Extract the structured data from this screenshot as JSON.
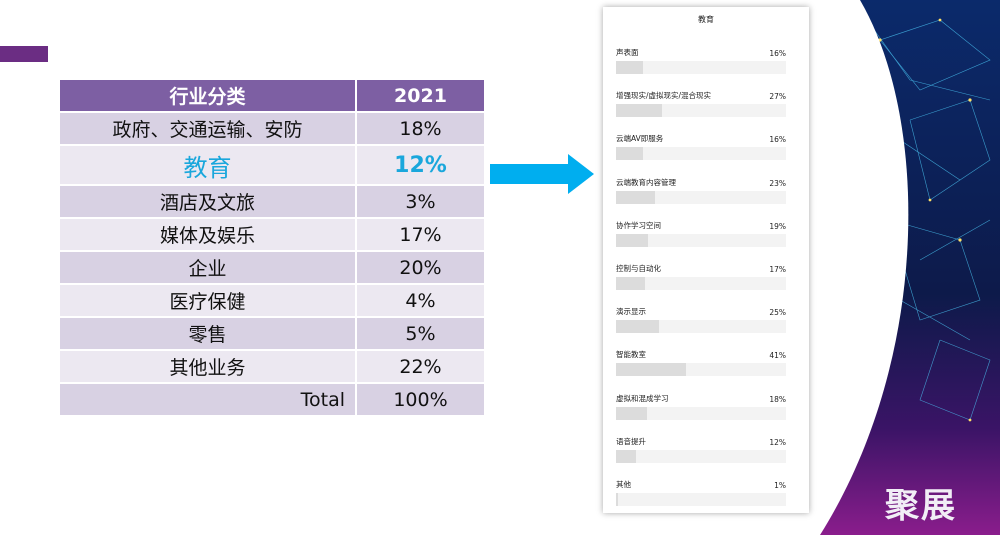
{
  "table": {
    "header": {
      "category": "行业分类",
      "year": "2021"
    },
    "rows": [
      {
        "category": "政府、交通运输、安防",
        "value": "18%"
      },
      {
        "category": "教育",
        "value": "12%"
      },
      {
        "category": "酒店及文旅",
        "value": "3%"
      },
      {
        "category": "媒体及娱乐",
        "value": "17%"
      },
      {
        "category": "企业",
        "value": "20%"
      },
      {
        "category": "医疗保健",
        "value": "4%"
      },
      {
        "category": "零售",
        "value": "5%"
      },
      {
        "category": "其他业务",
        "value": "22%"
      },
      {
        "category": "Total",
        "value": "100%"
      }
    ],
    "highlight_color": "#1aa7dc",
    "header_color": "#7d5fa3"
  },
  "panel": {
    "title": "教育",
    "items": [
      {
        "label": "声表面",
        "pct": "16%",
        "value": 16
      },
      {
        "label": "增强现实/虚拟现实/混合现实",
        "pct": "27%",
        "value": 27
      },
      {
        "label": "云端AV即服务",
        "pct": "16%",
        "value": 16
      },
      {
        "label": "云端教育内容管理",
        "pct": "23%",
        "value": 23
      },
      {
        "label": "协作学习空间",
        "pct": "19%",
        "value": 19
      },
      {
        "label": "控制与自动化",
        "pct": "17%",
        "value": 17
      },
      {
        "label": "演示显示",
        "pct": "25%",
        "value": 25
      },
      {
        "label": "智能教室",
        "pct": "41%",
        "value": 41
      },
      {
        "label": "虚拟和混成学习",
        "pct": "18%",
        "value": 18
      },
      {
        "label": "语音提升",
        "pct": "12%",
        "value": 12
      },
      {
        "label": "其他",
        "pct": "1%",
        "value": 1
      }
    ]
  },
  "arrow_color": "#00aeef",
  "accent_color": "#6b2d83",
  "logo": {
    "text": "聚展"
  }
}
